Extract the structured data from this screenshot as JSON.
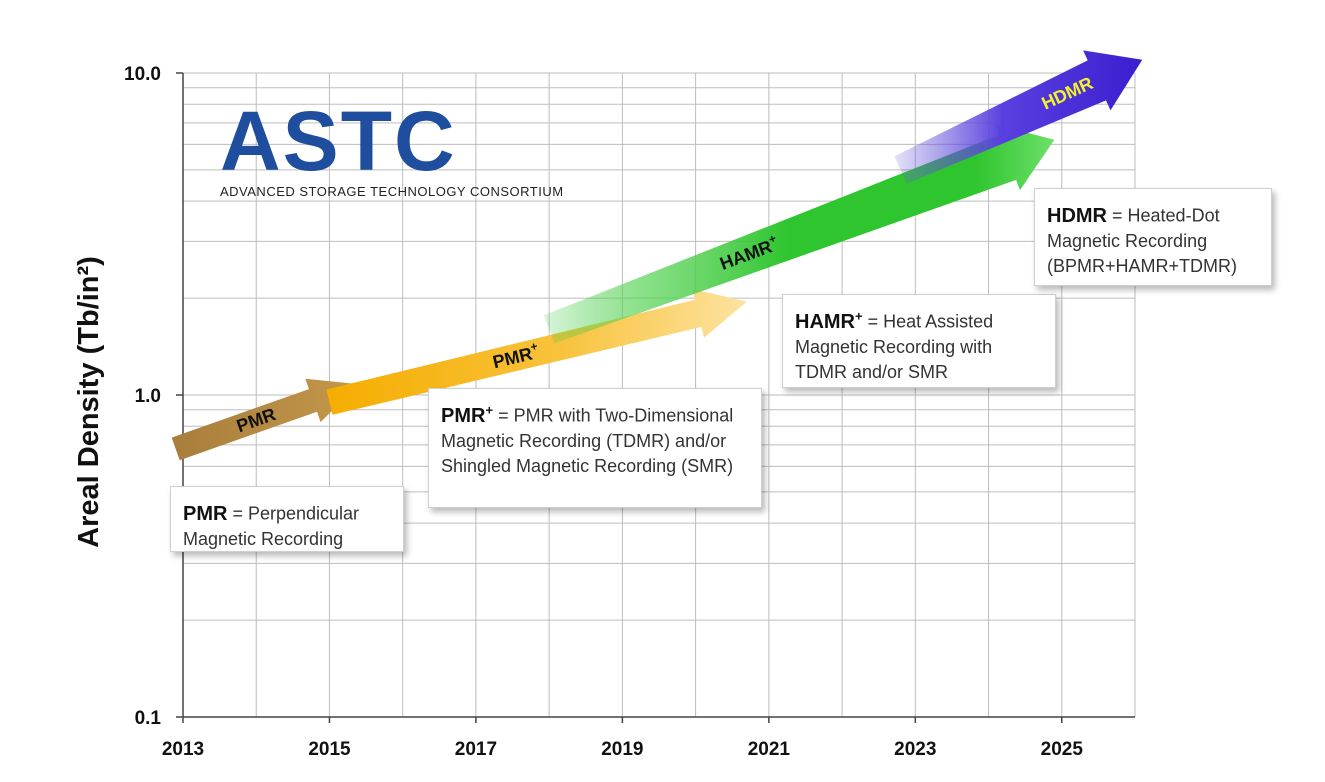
{
  "chart_data": {
    "type": "area",
    "title": "",
    "xlabel": "",
    "ylabel": "Areal Density (Tb/in²)",
    "x_ticks": [
      "2013",
      "2015",
      "2017",
      "2019",
      "2021",
      "2023",
      "2025"
    ],
    "y_ticks": [
      "0.1",
      "1.0",
      "10.0"
    ],
    "xlim": [
      2013,
      2026
    ],
    "ylim": [
      0.1,
      10.0
    ],
    "y_scale": "log",
    "grid": true,
    "series": [
      {
        "name": "PMR",
        "label_main": "PMR",
        "label_sup": "",
        "color": "#b8893a",
        "label_color": "#111111",
        "x": [
          2012.9,
          2015.4
        ],
        "y": [
          0.68,
          1.08
        ]
      },
      {
        "name": "PMR+",
        "label_main": "PMR",
        "label_sup": "+",
        "color": "#f5b400",
        "label_color": "#111111",
        "x": [
          2015.0,
          2020.7
        ],
        "y": [
          0.95,
          1.95
        ]
      },
      {
        "name": "HAMR+",
        "label_main": "HAMR",
        "label_sup": "+",
        "color": "#2fc52f",
        "label_color": "#111111",
        "x": [
          2018.0,
          2024.9
        ],
        "y": [
          1.6,
          6.2
        ]
      },
      {
        "name": "HDMR",
        "label_main": "HDMR",
        "label_sup": "",
        "color": "#4a2bd6",
        "label_color": "#f2f22a",
        "x": [
          2022.8,
          2026.1
        ],
        "y": [
          5.0,
          11.0
        ]
      }
    ]
  },
  "logo": {
    "main": "ASTC",
    "sub": "ADVANCED STORAGE TECHNOLOGY CONSORTIUM"
  },
  "notes": {
    "pmr": {
      "term": "PMR",
      "sup": "",
      "text": "= Perpendicular Magnetic Recording"
    },
    "pmrp": {
      "term": "PMR",
      "sup": "+",
      "text": "= PMR with Two-Dimensional Magnetic Recording (TDMR) and/or Shingled Magnetic Recording (SMR)"
    },
    "hamr": {
      "term": "HAMR",
      "sup": "+",
      "text": "= Heat Assisted Magnetic Recording with TDMR and/or SMR"
    },
    "hdmr": {
      "term": "HDMR",
      "sup": "",
      "text": "= Heated-Dot Magnetic Recording (BPMR+HAMR+TDMR)"
    }
  }
}
